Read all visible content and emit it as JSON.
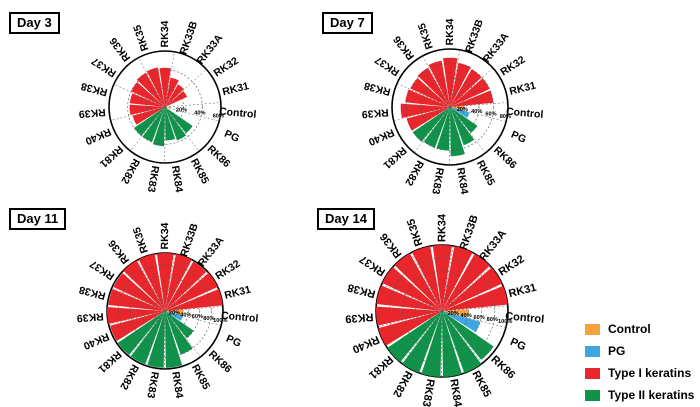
{
  "colors": {
    "control": "#f4a23a",
    "pg": "#3ea7e0",
    "type1": "#e8262c",
    "type2": "#11924a",
    "grid": "#555555",
    "ring": "#000000"
  },
  "legend": [
    {
      "label": "Control",
      "color": "#f4a23a"
    },
    {
      "label": "PG",
      "color": "#3ea7e0"
    },
    {
      "label": "Type I keratins",
      "color": "#e8262c"
    },
    {
      "label": "Type II keratins",
      "color": "#11924a"
    }
  ],
  "chart_data": [
    {
      "type": "radial-bar",
      "title": "Day 3",
      "categories": [
        "Control",
        "RK31",
        "RK32",
        "RK33A",
        "RK33B",
        "RK34",
        "RK35",
        "RK36",
        "RK37",
        "RK38",
        "RK39",
        "RK40",
        "RK81",
        "RK82",
        "RK83",
        "RK84",
        "RK85",
        "RK86",
        "PG"
      ],
      "groups": [
        "control",
        "type1",
        "type1",
        "type1",
        "type1",
        "type1",
        "type1",
        "type1",
        "type1",
        "type1",
        "type1",
        "type1",
        "type2",
        "type2",
        "type2",
        "type2",
        "type2",
        "type2",
        "pg"
      ],
      "values": [
        6,
        0,
        26,
        28,
        32,
        42,
        43,
        42,
        40,
        38,
        38,
        36,
        40,
        40,
        42,
        36,
        38,
        36,
        2
      ],
      "rlim": [
        0,
        60
      ],
      "ticks": [
        "20%",
        "40%",
        "60%"
      ]
    },
    {
      "type": "radial-bar",
      "title": "Day 7",
      "categories": [
        "Control",
        "RK31",
        "RK32",
        "RK33A",
        "RK33B",
        "RK34",
        "RK35",
        "RK36",
        "RK37",
        "RK38",
        "RK39",
        "RK40",
        "RK81",
        "RK82",
        "RK83",
        "RK84",
        "RK85",
        "RK86",
        "PG"
      ],
      "groups": [
        "control",
        "type1",
        "type1",
        "type1",
        "type1",
        "type1",
        "type1",
        "type1",
        "type1",
        "type1",
        "type1",
        "type1",
        "type2",
        "type2",
        "type2",
        "type2",
        "type2",
        "type2",
        "pg"
      ],
      "values": [
        20,
        60,
        60,
        60,
        62,
        68,
        65,
        62,
        60,
        62,
        68,
        62,
        62,
        60,
        60,
        68,
        56,
        46,
        28
      ],
      "rlim": [
        0,
        80
      ],
      "ticks": [
        "20%",
        "40%",
        "60%",
        "80%"
      ]
    },
    {
      "type": "radial-bar",
      "title": "Day 11",
      "categories": [
        "Control",
        "RK31",
        "RK32",
        "RK33A",
        "RK33B",
        "RK34",
        "RK35",
        "RK36",
        "RK37",
        "RK38",
        "RK39",
        "RK40",
        "RK81",
        "RK82",
        "RK83",
        "RK84",
        "RK85",
        "RK86",
        "PG"
      ],
      "groups": [
        "control",
        "type1",
        "type1",
        "type1",
        "type1",
        "type1",
        "type1",
        "type1",
        "type1",
        "type1",
        "type1",
        "type1",
        "type2",
        "type2",
        "type2",
        "type2",
        "type2",
        "type2",
        "pg"
      ],
      "values": [
        32,
        100,
        100,
        98,
        100,
        100,
        100,
        100,
        98,
        98,
        100,
        98,
        98,
        98,
        98,
        98,
        80,
        60,
        32
      ],
      "rlim": [
        0,
        100
      ],
      "ticks": [
        "20%",
        "40%",
        "60%",
        "80%",
        "100%"
      ]
    },
    {
      "type": "radial-bar",
      "title": "Day 14",
      "categories": [
        "Control",
        "RK31",
        "RK32",
        "RK33A",
        "RK33B",
        "RK34",
        "RK35",
        "RK36",
        "RK37",
        "RK38",
        "RK39",
        "RK40",
        "RK81",
        "RK82",
        "RK83",
        "RK84",
        "RK85",
        "RK86",
        "PG"
      ],
      "groups": [
        "control",
        "type1",
        "type1",
        "type1",
        "type1",
        "type1",
        "type1",
        "type1",
        "type1",
        "type1",
        "type1",
        "type1",
        "type2",
        "type2",
        "type2",
        "type2",
        "type2",
        "type2",
        "pg"
      ],
      "values": [
        40,
        100,
        100,
        100,
        100,
        100,
        100,
        100,
        100,
        100,
        100,
        100,
        100,
        100,
        100,
        100,
        100,
        95,
        60
      ],
      "rlim": [
        0,
        100
      ],
      "ticks": [
        "20%",
        "40%",
        "60%",
        "80%",
        "100%"
      ]
    }
  ]
}
